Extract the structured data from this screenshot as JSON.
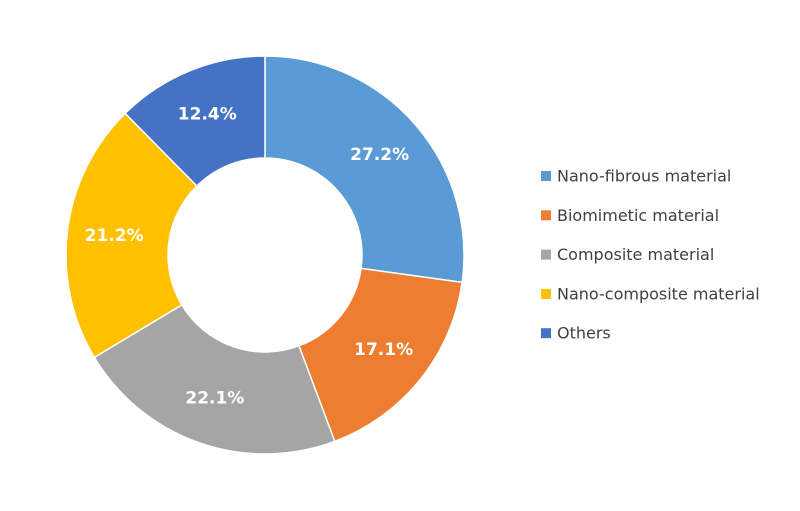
{
  "chart_data": {
    "type": "pie",
    "variant": "donut",
    "title": "",
    "legend_position": "right",
    "categories": [
      "Nano-fibrous material",
      "Biomimetic material",
      "Composite material",
      "Nano-composite material",
      "Others"
    ],
    "values": [
      27.2,
      17.1,
      22.1,
      21.2,
      12.4
    ],
    "labels": [
      "27.2%",
      "17.1%",
      "22.1%",
      "21.2%",
      "12.4%"
    ],
    "colors": [
      "#5b9bd5",
      "#ed7d31",
      "#a5a5a5",
      "#ffc000",
      "#4472c4"
    ]
  }
}
